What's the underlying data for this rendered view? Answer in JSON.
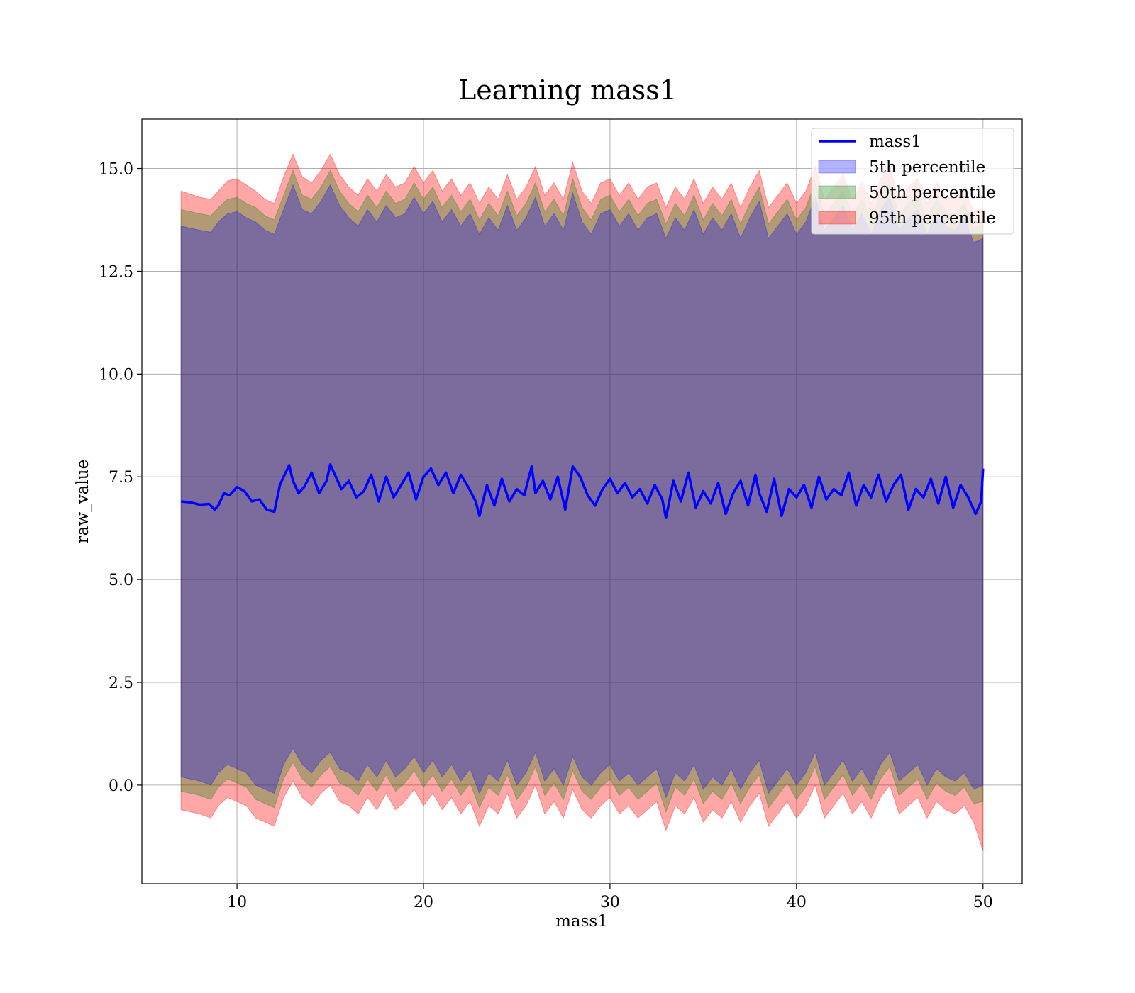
{
  "chart_data": {
    "type": "area",
    "title": "Learning mass1",
    "xlabel": "mass1",
    "ylabel": "raw_value",
    "xlim": [
      4.9,
      52.1
    ],
    "ylim": [
      -2.4,
      16.2
    ],
    "xticks": [
      10,
      20,
      30,
      40,
      50
    ],
    "xtick_labels": [
      "10",
      "20",
      "30",
      "40",
      "50"
    ],
    "yticks": [
      0.0,
      2.5,
      5.0,
      7.5,
      10.0,
      12.5,
      15.0
    ],
    "ytick_labels": [
      "0.0",
      "2.5",
      "5.0",
      "7.5",
      "10.0",
      "12.5",
      "15.0"
    ],
    "grid": true,
    "legend_position": "top-right",
    "x_range": [
      7,
      50
    ],
    "line": {
      "name": "mass1",
      "color": "#0000ff",
      "x": [
        7.0,
        7.5,
        8.0,
        8.5,
        8.8,
        9.0,
        9.3,
        9.6,
        10.0,
        10.4,
        10.8,
        11.2,
        11.6,
        12.0,
        12.3,
        12.6,
        12.8,
        13.0,
        13.3,
        13.6,
        14.0,
        14.4,
        14.8,
        15.0,
        15.3,
        15.6,
        16.0,
        16.4,
        16.8,
        17.2,
        17.6,
        18.0,
        18.4,
        18.8,
        19.2,
        19.6,
        20.0,
        20.4,
        20.8,
        21.2,
        21.6,
        22.0,
        22.4,
        22.8,
        23.0,
        23.4,
        23.8,
        24.2,
        24.6,
        25.0,
        25.4,
        25.8,
        26.0,
        26.4,
        26.8,
        27.2,
        27.6,
        28.0,
        28.4,
        28.8,
        29.2,
        29.6,
        30.0,
        30.4,
        30.8,
        31.2,
        31.6,
        32.0,
        32.4,
        32.8,
        33.0,
        33.4,
        33.8,
        34.2,
        34.6,
        35.0,
        35.4,
        35.8,
        36.2,
        36.6,
        37.0,
        37.4,
        37.8,
        38.0,
        38.4,
        38.8,
        39.2,
        39.6,
        40.0,
        40.4,
        40.8,
        41.2,
        41.6,
        42.0,
        42.4,
        42.8,
        43.2,
        43.6,
        44.0,
        44.4,
        44.8,
        45.2,
        45.6,
        46.0,
        46.4,
        46.8,
        47.2,
        47.6,
        48.0,
        48.4,
        48.8,
        49.2,
        49.6,
        49.9,
        50.0
      ],
      "y": [
        6.9,
        6.88,
        6.82,
        6.84,
        6.7,
        6.8,
        7.1,
        7.05,
        7.25,
        7.15,
        6.9,
        6.95,
        6.7,
        6.65,
        7.3,
        7.6,
        7.78,
        7.4,
        7.1,
        7.25,
        7.6,
        7.1,
        7.4,
        7.8,
        7.5,
        7.2,
        7.4,
        7.0,
        7.15,
        7.55,
        6.9,
        7.5,
        7.0,
        7.3,
        7.6,
        6.95,
        7.5,
        7.7,
        7.3,
        7.6,
        7.1,
        7.55,
        7.25,
        6.9,
        6.55,
        7.3,
        6.8,
        7.45,
        6.9,
        7.2,
        7.05,
        7.75,
        7.1,
        7.4,
        6.95,
        7.5,
        6.7,
        7.75,
        7.5,
        7.05,
        6.8,
        7.2,
        7.45,
        7.1,
        7.35,
        7.0,
        7.2,
        6.85,
        7.3,
        6.95,
        6.5,
        7.4,
        6.9,
        7.6,
        6.75,
        7.15,
        6.85,
        7.35,
        6.6,
        7.1,
        7.4,
        6.8,
        7.55,
        7.1,
        6.65,
        7.45,
        6.55,
        7.2,
        7.0,
        7.3,
        6.75,
        7.5,
        6.95,
        7.2,
        7.05,
        7.6,
        6.8,
        7.3,
        7.0,
        7.55,
        6.9,
        7.3,
        7.55,
        6.7,
        7.2,
        7.0,
        7.45,
        6.85,
        7.5,
        6.75,
        7.3,
        7.0,
        6.6,
        6.9,
        7.7
      ]
    },
    "bands": [
      {
        "name": "5th percentile",
        "color": "#0000ff",
        "fill_opacity": 0.3,
        "x": [
          7.0,
          8.0,
          8.6,
          9.0,
          9.5,
          10.0,
          10.5,
          11.0,
          11.5,
          12.0,
          12.5,
          13.0,
          13.5,
          14.0,
          14.5,
          15.0,
          15.5,
          16.0,
          16.5,
          17.0,
          17.5,
          18.0,
          18.5,
          19.0,
          19.5,
          20.0,
          20.5,
          21.0,
          21.5,
          22.0,
          22.5,
          23.0,
          23.5,
          24.0,
          24.5,
          25.0,
          25.5,
          26.0,
          26.5,
          27.0,
          27.5,
          28.0,
          28.5,
          29.0,
          29.5,
          30.0,
          30.5,
          31.0,
          31.5,
          32.0,
          32.5,
          33.0,
          33.5,
          34.0,
          34.5,
          35.0,
          35.5,
          36.0,
          36.5,
          37.0,
          37.5,
          38.0,
          38.5,
          39.0,
          39.5,
          40.0,
          40.5,
          41.0,
          41.5,
          42.0,
          42.5,
          43.0,
          43.5,
          44.0,
          44.5,
          45.0,
          45.5,
          46.0,
          46.5,
          47.0,
          47.5,
          48.0,
          48.5,
          49.0,
          49.5,
          50.0
        ],
        "lower": [
          0.2,
          0.1,
          0.0,
          0.3,
          0.5,
          0.4,
          0.3,
          0.0,
          -0.1,
          -0.2,
          0.5,
          0.9,
          0.5,
          0.3,
          0.6,
          0.8,
          0.4,
          0.3,
          0.1,
          0.5,
          0.2,
          0.6,
          0.2,
          0.4,
          0.7,
          0.3,
          0.6,
          0.2,
          0.5,
          0.1,
          0.4,
          -0.2,
          0.3,
          0.1,
          0.6,
          0.0,
          0.3,
          0.8,
          0.1,
          0.4,
          0.0,
          0.7,
          0.2,
          0.0,
          0.3,
          0.5,
          0.1,
          0.3,
          0.0,
          0.2,
          0.4,
          -0.3,
          0.3,
          0.1,
          0.5,
          -0.1,
          0.2,
          0.0,
          0.4,
          -0.1,
          0.3,
          0.6,
          -0.2,
          0.1,
          0.4,
          0.0,
          0.3,
          0.8,
          0.0,
          0.3,
          0.6,
          0.1,
          0.4,
          0.0,
          0.5,
          0.8,
          0.1,
          0.3,
          0.5,
          0.0,
          0.4,
          0.2,
          0.1,
          0.3,
          -0.1,
          0.0
        ],
        "upper": [
          13.6,
          13.5,
          13.45,
          13.7,
          13.9,
          13.95,
          13.8,
          13.7,
          13.5,
          13.4,
          14.0,
          14.6,
          14.0,
          13.9,
          14.2,
          14.6,
          14.1,
          13.8,
          13.6,
          14.0,
          13.7,
          14.1,
          13.8,
          13.9,
          14.3,
          13.9,
          14.2,
          13.7,
          14.0,
          13.6,
          13.9,
          13.4,
          13.8,
          13.5,
          14.1,
          13.5,
          13.8,
          14.3,
          13.6,
          13.9,
          13.5,
          14.4,
          13.7,
          13.4,
          13.9,
          14.0,
          13.6,
          13.9,
          13.5,
          13.8,
          13.9,
          13.3,
          13.8,
          13.5,
          14.0,
          13.4,
          13.8,
          13.5,
          13.9,
          13.3,
          13.8,
          14.2,
          13.3,
          13.6,
          13.9,
          13.4,
          13.7,
          14.3,
          13.5,
          13.8,
          14.1,
          13.5,
          13.9,
          13.4,
          14.0,
          14.3,
          13.5,
          13.8,
          14.0,
          13.4,
          13.9,
          13.6,
          13.5,
          13.8,
          13.2,
          13.3
        ]
      },
      {
        "name": "50th percentile",
        "color": "#008000",
        "fill_opacity": 0.3,
        "x": [
          7.0,
          8.0,
          8.6,
          9.0,
          9.5,
          10.0,
          10.5,
          11.0,
          11.5,
          12.0,
          12.5,
          13.0,
          13.5,
          14.0,
          14.5,
          15.0,
          15.5,
          16.0,
          16.5,
          17.0,
          17.5,
          18.0,
          18.5,
          19.0,
          19.5,
          20.0,
          20.5,
          21.0,
          21.5,
          22.0,
          22.5,
          23.0,
          23.5,
          24.0,
          24.5,
          25.0,
          25.5,
          26.0,
          26.5,
          27.0,
          27.5,
          28.0,
          28.5,
          29.0,
          29.5,
          30.0,
          30.5,
          31.0,
          31.5,
          32.0,
          32.5,
          33.0,
          33.5,
          34.0,
          34.5,
          35.0,
          35.5,
          36.0,
          36.5,
          37.0,
          37.5,
          38.0,
          38.5,
          39.0,
          39.5,
          40.0,
          40.5,
          41.0,
          41.5,
          42.0,
          42.5,
          43.0,
          43.5,
          44.0,
          44.5,
          45.0,
          45.5,
          46.0,
          46.5,
          47.0,
          47.5,
          48.0,
          48.5,
          49.0,
          49.5,
          50.0
        ],
        "lower": [
          -0.15,
          -0.25,
          -0.35,
          -0.05,
          0.15,
          0.05,
          -0.05,
          -0.35,
          -0.45,
          -0.55,
          0.15,
          0.55,
          0.15,
          -0.05,
          0.25,
          0.45,
          0.05,
          -0.05,
          -0.25,
          0.15,
          -0.15,
          0.25,
          -0.15,
          0.05,
          0.35,
          -0.05,
          0.25,
          -0.15,
          0.15,
          -0.25,
          0.05,
          -0.55,
          -0.05,
          -0.25,
          0.25,
          -0.35,
          -0.05,
          0.45,
          -0.25,
          0.05,
          -0.35,
          0.35,
          -0.15,
          -0.35,
          -0.05,
          0.15,
          -0.25,
          -0.05,
          -0.35,
          -0.15,
          0.05,
          -0.65,
          -0.05,
          -0.25,
          0.15,
          -0.45,
          -0.15,
          -0.35,
          0.05,
          -0.45,
          -0.05,
          0.25,
          -0.55,
          -0.25,
          0.05,
          -0.35,
          -0.05,
          0.45,
          -0.35,
          -0.05,
          0.25,
          -0.25,
          0.05,
          -0.35,
          0.15,
          0.45,
          -0.25,
          -0.05,
          0.15,
          -0.35,
          0.05,
          -0.15,
          -0.25,
          -0.05,
          -0.45,
          -0.4
        ],
        "upper": [
          14.0,
          13.9,
          13.85,
          14.05,
          14.25,
          14.3,
          14.15,
          14.05,
          13.85,
          13.75,
          14.35,
          14.95,
          14.35,
          14.25,
          14.55,
          14.95,
          14.45,
          14.15,
          13.95,
          14.35,
          14.05,
          14.45,
          14.15,
          14.25,
          14.65,
          14.25,
          14.55,
          14.05,
          14.35,
          13.95,
          14.25,
          13.75,
          14.15,
          13.85,
          14.45,
          13.85,
          14.15,
          14.65,
          13.95,
          14.25,
          13.85,
          14.75,
          14.05,
          13.75,
          14.25,
          14.35,
          13.95,
          14.25,
          13.85,
          14.15,
          14.25,
          13.65,
          14.15,
          13.85,
          14.35,
          13.75,
          14.15,
          13.85,
          14.25,
          13.65,
          14.15,
          14.55,
          13.65,
          13.95,
          14.25,
          13.75,
          14.05,
          14.65,
          13.85,
          14.15,
          14.45,
          13.85,
          14.25,
          13.75,
          14.35,
          14.65,
          13.85,
          14.15,
          14.35,
          13.75,
          14.25,
          13.95,
          13.85,
          14.15,
          13.55,
          13.65
        ]
      },
      {
        "name": "95th percentile",
        "color": "#ff0000",
        "fill_opacity": 0.35,
        "x": [
          7.0,
          8.0,
          8.6,
          9.0,
          9.5,
          10.0,
          10.5,
          11.0,
          11.5,
          12.0,
          12.5,
          13.0,
          13.5,
          14.0,
          14.5,
          15.0,
          15.5,
          16.0,
          16.5,
          17.0,
          17.5,
          18.0,
          18.5,
          19.0,
          19.5,
          20.0,
          20.5,
          21.0,
          21.5,
          22.0,
          22.5,
          23.0,
          23.5,
          24.0,
          24.5,
          25.0,
          25.5,
          26.0,
          26.5,
          27.0,
          27.5,
          28.0,
          28.5,
          29.0,
          29.5,
          30.0,
          30.5,
          31.0,
          31.5,
          32.0,
          32.5,
          33.0,
          33.5,
          34.0,
          34.5,
          35.0,
          35.5,
          36.0,
          36.5,
          37.0,
          37.5,
          38.0,
          38.5,
          39.0,
          39.5,
          40.0,
          40.5,
          41.0,
          41.5,
          42.0,
          42.5,
          43.0,
          43.5,
          44.0,
          44.5,
          45.0,
          45.5,
          46.0,
          46.5,
          47.0,
          47.5,
          48.0,
          48.5,
          49.0,
          49.5,
          50.0
        ],
        "lower": [
          -0.6,
          -0.7,
          -0.8,
          -0.5,
          -0.3,
          -0.4,
          -0.5,
          -0.8,
          -0.9,
          -1.0,
          -0.3,
          0.1,
          -0.3,
          -0.5,
          -0.2,
          0.0,
          -0.4,
          -0.5,
          -0.7,
          -0.3,
          -0.6,
          -0.2,
          -0.6,
          -0.4,
          -0.1,
          -0.5,
          -0.2,
          -0.6,
          -0.3,
          -0.7,
          -0.4,
          -1.0,
          -0.5,
          -0.7,
          -0.2,
          -0.8,
          -0.5,
          0.0,
          -0.7,
          -0.4,
          -0.8,
          -0.1,
          -0.6,
          -0.8,
          -0.5,
          -0.3,
          -0.7,
          -0.5,
          -0.8,
          -0.6,
          -0.4,
          -1.1,
          -0.5,
          -0.7,
          -0.3,
          -0.9,
          -0.6,
          -0.8,
          -0.4,
          -0.9,
          -0.5,
          -0.2,
          -1.0,
          -0.7,
          -0.4,
          -0.8,
          -0.5,
          0.0,
          -0.8,
          -0.5,
          -0.2,
          -0.7,
          -0.4,
          -0.8,
          -0.3,
          0.0,
          -0.7,
          -0.5,
          -0.3,
          -0.8,
          -0.4,
          -0.6,
          -0.7,
          -0.5,
          -0.9,
          -1.6
        ],
        "upper": [
          14.45,
          14.3,
          14.25,
          14.45,
          14.7,
          14.75,
          14.6,
          14.45,
          14.25,
          14.15,
          14.8,
          15.35,
          14.8,
          14.65,
          14.95,
          15.35,
          14.85,
          14.55,
          14.35,
          14.75,
          14.45,
          14.85,
          14.55,
          14.65,
          15.05,
          14.65,
          14.95,
          14.45,
          14.75,
          14.35,
          14.65,
          14.15,
          14.55,
          14.25,
          14.85,
          14.25,
          14.55,
          15.05,
          14.35,
          14.65,
          14.25,
          15.15,
          14.45,
          14.15,
          14.65,
          14.75,
          14.35,
          14.65,
          14.25,
          14.55,
          14.65,
          14.05,
          14.55,
          14.25,
          14.75,
          14.15,
          14.55,
          14.25,
          14.65,
          14.05,
          14.55,
          14.95,
          14.05,
          14.35,
          14.65,
          14.15,
          14.45,
          15.05,
          14.25,
          14.55,
          14.85,
          14.25,
          14.65,
          14.15,
          14.75,
          15.05,
          14.25,
          14.55,
          14.75,
          14.15,
          14.65,
          14.35,
          14.25,
          14.55,
          13.95,
          14.05
        ]
      }
    ],
    "legend": [
      "mass1",
      "5th percentile",
      "50th percentile",
      "95th percentile"
    ]
  }
}
